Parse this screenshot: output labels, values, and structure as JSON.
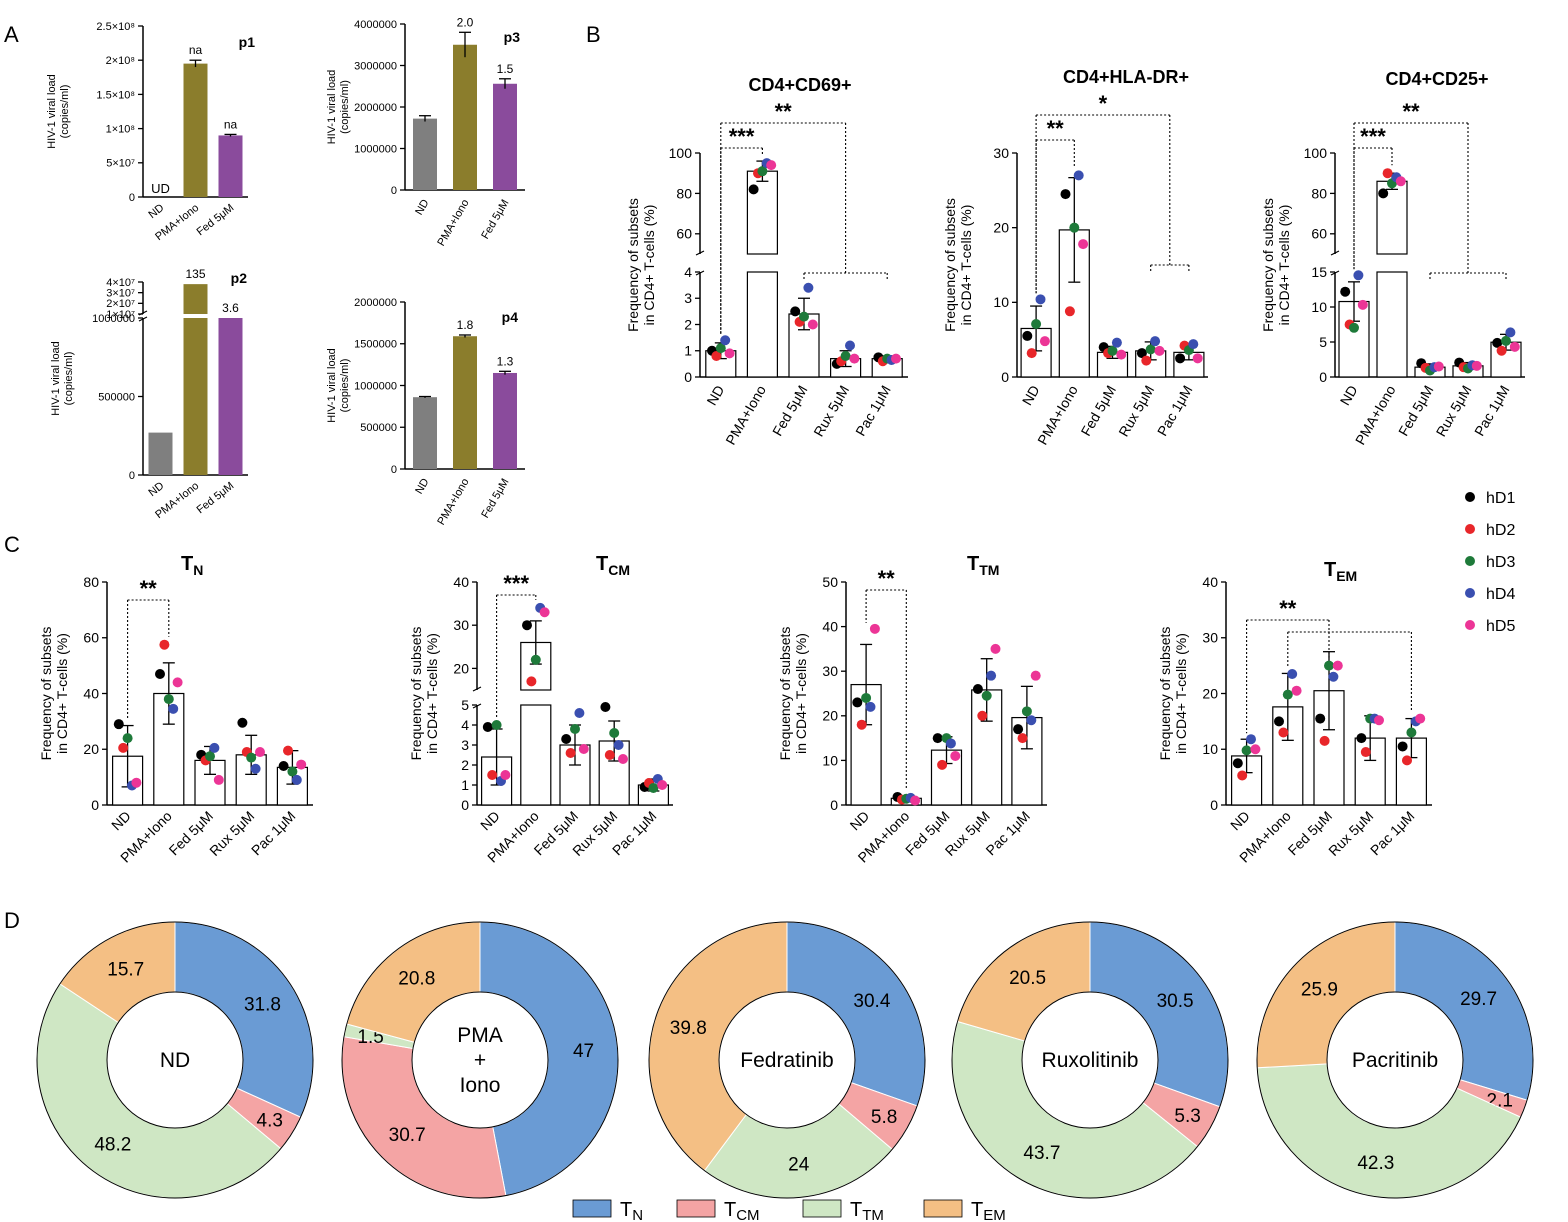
{
  "panel_letters": {
    "A": "A",
    "B": "B",
    "C": "C",
    "D": "D"
  },
  "colors": {
    "ND": "#7f7f7f",
    "PMA": "#8b7d2c",
    "Fed": "#8a4b9c",
    "hD1": "#000000",
    "hD2": "#e8262a",
    "hD3": "#1e7a3a",
    "hD4": "#3a4fb0",
    "hD5": "#ec3596",
    "TN": "#6a9bd4",
    "TCM": "#f4a4a4",
    "TTM": "#cfe7c4",
    "TEM": "#f4bf84"
  },
  "donors": [
    "hD1",
    "hD2",
    "hD3",
    "hD4",
    "hD5"
  ],
  "chart_data": [
    {
      "id": "p1",
      "type": "bar",
      "title": "p1",
      "ylabel": [
        "HIV-1 viral load",
        "(copies/ml)"
      ],
      "categories": [
        "ND",
        "PMA+Iono",
        "Fed 5μM"
      ],
      "values": [
        0,
        195000000,
        90000000
      ],
      "errors": [
        0,
        5000000,
        1500000
      ],
      "ylim": [
        0,
        250000000
      ],
      "yticks": [
        "0",
        "5×10⁷",
        "1×10⁸",
        "1.5×10⁸",
        "2×10⁸",
        "2.5×10⁸"
      ],
      "annotations": [
        "UD",
        "na",
        "na"
      ]
    },
    {
      "id": "p3",
      "type": "bar",
      "title": "p3",
      "ylabel": [
        "HIV-1 viral load",
        "(copies/ml)"
      ],
      "categories": [
        "ND",
        "PMA+Iono",
        "Fed 5μM"
      ],
      "values": [
        1720000,
        3500000,
        2560000
      ],
      "errors": [
        70000,
        300000,
        120000
      ],
      "ylim": [
        0,
        4000000
      ],
      "yticks": [
        "0",
        "1000000",
        "2000000",
        "3000000",
        "4000000"
      ],
      "annotations": [
        "",
        "2.0",
        "1.5"
      ]
    },
    {
      "id": "p2",
      "type": "bar",
      "title": "p2",
      "ylabel": [
        "HIV-1 viral load",
        "(copies/ml)"
      ],
      "categories": [
        "ND",
        "PMA+Iono",
        "Fed 5μM"
      ],
      "values": [
        270000,
        38000000,
        1000000
      ],
      "errors": [
        0,
        0,
        0
      ],
      "ylim_lower": [
        0,
        1000000
      ],
      "ylim_upper": [
        10000000,
        40000000
      ],
      "axis_break": true,
      "yticks_lower": [
        "0",
        "500000",
        "1000000"
      ],
      "yticks_upper": [
        "1×10⁷",
        "2×10⁷",
        "3×10⁷",
        "4×10⁷"
      ],
      "annotations": [
        "",
        "135",
        "3.6"
      ]
    },
    {
      "id": "p4",
      "type": "bar",
      "title": "p4",
      "ylabel": [
        "HIV-1 viral load",
        "(copies/ml)"
      ],
      "categories": [
        "ND",
        "PMA+Iono",
        "Fed 5μM"
      ],
      "values": [
        860000,
        1590000,
        1150000
      ],
      "errors": [
        8000,
        15000,
        20000
      ],
      "ylim": [
        0,
        2000000
      ],
      "yticks": [
        "0",
        "500000",
        "1000000",
        "1500000",
        "2000000"
      ],
      "annotations": [
        "",
        "1.8",
        "1.3"
      ]
    },
    {
      "id": "B1",
      "type": "bar",
      "title": "CD4+CD69+",
      "ylabel": [
        "Frequency of subsets",
        "in CD4+ T-cells (%)"
      ],
      "categories": [
        "ND",
        "PMA+Iono",
        "Fed 5μM",
        "Rux 5μM",
        "Pac 1μM"
      ],
      "values": [
        1.0,
        91,
        2.4,
        0.7,
        0.7
      ],
      "errors": [
        0.3,
        5,
        0.6,
        0.3,
        0.1
      ],
      "points": [
        [
          1.0,
          0.8,
          1.1,
          1.4,
          0.9
        ],
        [
          82,
          90,
          91,
          95,
          94
        ],
        [
          2.5,
          2.1,
          2.3,
          3.4,
          2.0
        ],
        [
          0.5,
          0.6,
          0.8,
          1.2,
          0.7
        ],
        [
          0.75,
          0.6,
          0.7,
          0.65,
          0.7
        ]
      ],
      "axis_break": true,
      "ylim_lower": [
        0,
        4
      ],
      "ylim_upper": [
        50,
        100
      ],
      "yticks_lower": [
        "0",
        "1",
        "2",
        "3",
        "4"
      ],
      "yticks_upper": [
        "60",
        "80",
        "100"
      ],
      "significance": [
        {
          "label": "***",
          "from": 0,
          "to": 1
        },
        {
          "label": "**",
          "from": 0,
          "to": [
            2,
            4
          ]
        }
      ]
    },
    {
      "id": "B2",
      "type": "bar",
      "title": "CD4+HLA-DR+",
      "ylabel": [
        "Frequency of subsets",
        "in CD4+ T-cells (%)"
      ],
      "categories": [
        "ND",
        "PMA+Iono",
        "Fed 5μM",
        "Rux 5μM",
        "Pac 1μM"
      ],
      "values": [
        6.5,
        19.7,
        3.3,
        3.5,
        3.3
      ],
      "errors": [
        3,
        7,
        0.8,
        1.2,
        1
      ],
      "points": [
        [
          5.5,
          3.2,
          7.1,
          10.4,
          4.8
        ],
        [
          24.5,
          8.8,
          20,
          27,
          17.8
        ],
        [
          4,
          3.2,
          3.5,
          4.6,
          3.0
        ],
        [
          3.2,
          2.2,
          3.7,
          4.8,
          3.5
        ],
        [
          2.5,
          4.2,
          3.6,
          4.4,
          2.5
        ]
      ],
      "ylim": [
        0,
        30
      ],
      "yticks": [
        "0",
        "10",
        "20",
        "30"
      ],
      "significance": [
        {
          "label": "**",
          "from": 0,
          "to": 1
        },
        {
          "label": "*",
          "from": 0,
          "to": [
            3,
            4
          ]
        }
      ]
    },
    {
      "id": "B3",
      "type": "bar",
      "title": "CD4+CD25+",
      "ylabel": [
        "Frequency of subsets",
        "in CD4+ T-cells (%)"
      ],
      "categories": [
        "ND",
        "PMA+Iono",
        "Fed 5μM",
        "Rux 5μM",
        "Pac 1μM"
      ],
      "values": [
        11.5,
        86,
        1.5,
        1.7,
        5.3
      ],
      "errors": [
        3,
        4,
        0.5,
        0.5,
        1.2
      ],
      "points": [
        [
          13,
          8,
          7.5,
          15.5,
          11
        ],
        [
          80,
          90,
          85,
          88,
          86
        ],
        [
          2.1,
          1.4,
          1.0,
          1.5,
          1.6
        ],
        [
          2.2,
          1.5,
          1.3,
          1.8,
          1.7
        ],
        [
          5.2,
          4.0,
          5.5,
          6.8,
          4.6
        ]
      ],
      "axis_break": true,
      "ylim_lower": [
        0,
        16
      ],
      "ylim_upper": [
        50,
        100
      ],
      "yticks_lower": [
        "0",
        "5",
        "10",
        "15"
      ],
      "yticks_upper": [
        "60",
        "80",
        "100"
      ],
      "significance": [
        {
          "label": "***",
          "from": 0,
          "to": 1
        },
        {
          "label": "**",
          "from": 0,
          "to": [
            2,
            4
          ]
        }
      ]
    },
    {
      "id": "C1",
      "type": "bar",
      "title": "T",
      "title_sub": "N",
      "ylabel": [
        "Frequency of subsets",
        "in CD4+ T-cells (%)"
      ],
      "categories": [
        "ND",
        "PMA+Iono",
        "Fed 5μM",
        "Rux 5μM",
        "Pac 1μM"
      ],
      "values": [
        17.5,
        40,
        16,
        18,
        13.5
      ],
      "errors": [
        11,
        11,
        5,
        7,
        6
      ],
      "points": [
        [
          29,
          20.5,
          24,
          7,
          8
        ],
        [
          47,
          57.5,
          38,
          34.5,
          44
        ],
        [
          18,
          16,
          17.5,
          20.5,
          9
        ],
        [
          29.5,
          19,
          17,
          13,
          19
        ],
        [
          14,
          19.5,
          12,
          9,
          14.5
        ]
      ],
      "ylim": [
        0,
        80
      ],
      "yticks": [
        "0",
        "20",
        "40",
        "60",
        "80"
      ],
      "significance": [
        {
          "label": "**",
          "from": 0,
          "to": 1
        }
      ]
    },
    {
      "id": "C2",
      "type": "bar",
      "title": "T",
      "title_sub": "CM",
      "ylabel": [
        "Frequency of subsets",
        "in CD4+ T-cells (%)"
      ],
      "categories": [
        "ND",
        "PMA+Iono",
        "Fed 5μM",
        "Rux 5μM",
        "Pac 1μM"
      ],
      "values": [
        2.4,
        26,
        3,
        3.2,
        1
      ],
      "errors": [
        1.4,
        5,
        1,
        1,
        0.3
      ],
      "points": [
        [
          3.9,
          1.5,
          4.0,
          1.2,
          1.5
        ],
        [
          30,
          17,
          22,
          34,
          33
        ],
        [
          3.3,
          2.6,
          3.8,
          4.6,
          2.8
        ],
        [
          4.9,
          2.5,
          3.6,
          3.0,
          2.3
        ],
        [
          0.9,
          1.1,
          0.85,
          1.3,
          1.0
        ]
      ],
      "axis_break": true,
      "ylim_lower": [
        0,
        5
      ],
      "ylim_upper": [
        15,
        40
      ],
      "yticks_lower": [
        "0",
        "1",
        "2",
        "3",
        "4",
        "5"
      ],
      "yticks_upper": [
        "20",
        "30",
        "40"
      ],
      "significance": [
        {
          "label": "***",
          "from": 0,
          "to": 1
        }
      ]
    },
    {
      "id": "C3",
      "type": "bar",
      "title": "T",
      "title_sub": "TM",
      "ylabel": [
        "Frequency of subsets",
        "in CD4+ T-cells (%)"
      ],
      "categories": [
        "ND",
        "PMA+Iono",
        "Fed 5μM",
        "Rux 5μM",
        "Pac 1μM"
      ],
      "values": [
        27,
        1.5,
        12.3,
        25.8,
        19.6
      ],
      "errors": [
        9,
        0.5,
        3,
        7,
        7
      ],
      "points": [
        [
          23,
          18,
          24,
          22,
          39.5
        ],
        [
          1.8,
          1.2,
          1.4,
          1.6,
          1.0
        ],
        [
          15,
          9,
          15,
          13.8,
          11
        ],
        [
          26,
          20,
          24.5,
          29,
          35
        ],
        [
          17,
          15,
          21,
          19,
          29
        ]
      ],
      "ylim": [
        0,
        50
      ],
      "yticks": [
        "0",
        "10",
        "20",
        "30",
        "40",
        "50"
      ],
      "significance": [
        {
          "label": "**",
          "from": 0,
          "to": 1
        }
      ]
    },
    {
      "id": "C4",
      "type": "bar",
      "title": "T",
      "title_sub": "EM",
      "ylabel": [
        "Frequency of subsets",
        "in CD4+ T-cells (%)"
      ],
      "categories": [
        "ND",
        "PMA+Iono",
        "Fed 5μM",
        "Rux 5μM",
        "Pac 1μM"
      ],
      "values": [
        8.8,
        17.6,
        20.5,
        12,
        12
      ],
      "errors": [
        3,
        6,
        7,
        4,
        3.5
      ],
      "points": [
        [
          7.5,
          5.3,
          9.8,
          11.8,
          10
        ],
        [
          15,
          13,
          19.8,
          23.5,
          20.5
        ],
        [
          15.5,
          11.5,
          25,
          23,
          25
        ],
        [
          12,
          9.5,
          15.5,
          15.5,
          15.2
        ],
        [
          10.5,
          8,
          13,
          15,
          15.5
        ]
      ],
      "ylim": [
        0,
        40
      ],
      "yticks": [
        "0",
        "10",
        "20",
        "30",
        "40"
      ],
      "significance": [
        {
          "label": "**",
          "from": 0,
          "to": 2
        },
        {
          "label": "",
          "from": 1,
          "to": 4
        }
      ]
    },
    {
      "id": "D1",
      "type": "pie",
      "center_lines": [
        "ND"
      ],
      "slices": [
        {
          "key": "TN",
          "value": 31.8,
          "label": "31.8"
        },
        {
          "key": "TCM",
          "value": 4.3,
          "label": "4.3"
        },
        {
          "key": "TTM",
          "value": 48.2,
          "label": "48.2"
        },
        {
          "key": "TEM",
          "value": 15.7,
          "label": "15.7"
        }
      ]
    },
    {
      "id": "D2",
      "type": "pie",
      "center_lines": [
        "PMA",
        "+",
        "Iono"
      ],
      "slices": [
        {
          "key": "TN",
          "value": 47,
          "label": "47"
        },
        {
          "key": "TCM",
          "value": 30.7,
          "label": "30.7"
        },
        {
          "key": "TTM",
          "value": 1.5,
          "label": "1.5"
        },
        {
          "key": "TEM",
          "value": 20.8,
          "label": "20.8"
        }
      ]
    },
    {
      "id": "D3",
      "type": "pie",
      "center_lines": [
        "Fedratinib"
      ],
      "slices": [
        {
          "key": "TN",
          "value": 30.4,
          "label": "30.4"
        },
        {
          "key": "TCM",
          "value": 5.8,
          "label": "5.8"
        },
        {
          "key": "TTM",
          "value": 24,
          "label": "24"
        },
        {
          "key": "TEM",
          "value": 39.8,
          "label": "39.8"
        }
      ]
    },
    {
      "id": "D4",
      "type": "pie",
      "center_lines": [
        "Ruxolitinib"
      ],
      "slices": [
        {
          "key": "TN",
          "value": 30.5,
          "label": "30.5"
        },
        {
          "key": "TCM",
          "value": 5.3,
          "label": "5.3"
        },
        {
          "key": "TTM",
          "value": 43.7,
          "label": "43.7"
        },
        {
          "key": "TEM",
          "value": 20.5,
          "label": "20.5"
        }
      ]
    },
    {
      "id": "D5",
      "type": "pie",
      "center_lines": [
        "Pacritinib"
      ],
      "slices": [
        {
          "key": "TN",
          "value": 29.7,
          "label": "29.7"
        },
        {
          "key": "TCM",
          "value": 2.1,
          "label": "2.1"
        },
        {
          "key": "TTM",
          "value": 42.3,
          "label": "42.3"
        },
        {
          "key": "TEM",
          "value": 25.9,
          "label": "25.9"
        }
      ]
    }
  ],
  "pie_legend": [
    {
      "key": "TN",
      "main": "T",
      "sub": "N"
    },
    {
      "key": "TCM",
      "main": "T",
      "sub": "CM"
    },
    {
      "key": "TTM",
      "main": "T",
      "sub": "TM"
    },
    {
      "key": "TEM",
      "main": "T",
      "sub": "EM"
    }
  ]
}
